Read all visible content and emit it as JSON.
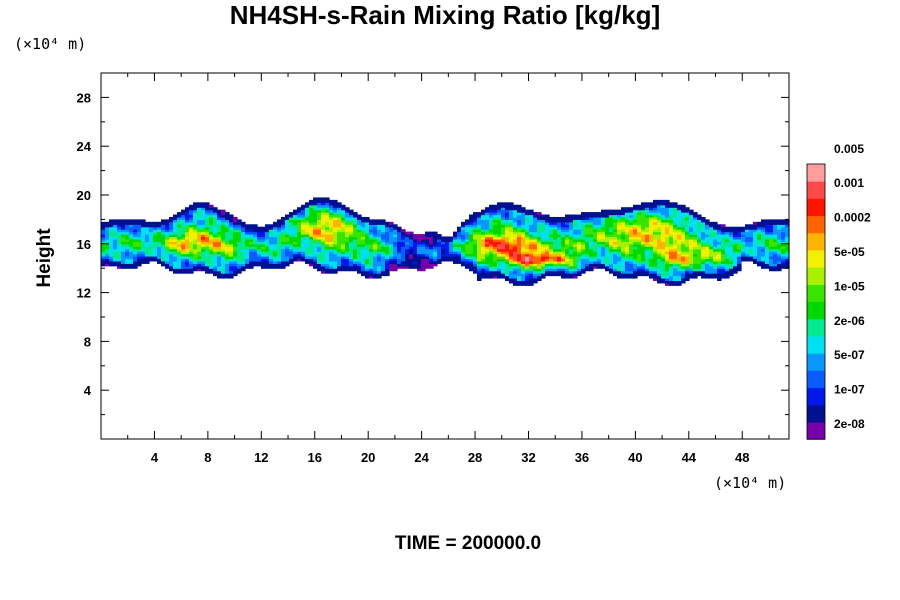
{
  "chart_data": {
    "type": "heatmap",
    "title": "NH4SH-s-Rain Mixing Ratio [kg/kg]",
    "ylabel": "Height",
    "x_unit": "(×10⁴ m)",
    "y_unit": "(×10⁴ m)",
    "xlim": [
      0,
      51.5
    ],
    "ylim": [
      0,
      30
    ],
    "x_ticks": [
      4,
      8,
      12,
      16,
      20,
      24,
      28,
      32,
      36,
      40,
      44,
      48
    ],
    "x_tick_labels": [
      "4",
      "8",
      "12",
      "16",
      "20",
      "24",
      "28",
      "32",
      "36",
      "40",
      "44",
      "48"
    ],
    "y_ticks": [
      4,
      8,
      12,
      16,
      20,
      24,
      28
    ],
    "y_tick_labels": [
      "4",
      "8",
      "12",
      "16",
      "20",
      "24",
      "28"
    ],
    "time_label": "TIME = 200000.0",
    "colorbar": {
      "colors": [
        "#7700a8",
        "#001090",
        "#0018e8",
        "#0a5cff",
        "#0a96ff",
        "#00e0f0",
        "#00e890",
        "#00d800",
        "#38e400",
        "#a8f000",
        "#f0f000",
        "#ffb400",
        "#ff6400",
        "#ff1400",
        "#ff4848",
        "#ff9c9c"
      ],
      "labels": [
        "2e-08",
        "1e-07",
        "5e-07",
        "2e-06",
        "1e-05",
        "5e-05",
        "0.0002",
        "0.001",
        "0.005"
      ]
    },
    "field_description_levels": {
      "layer_bottom_height": 13.5,
      "layer_top_height": 19.5,
      "max_level_near_x": 33,
      "max_level_near_height": 14.7
    }
  }
}
